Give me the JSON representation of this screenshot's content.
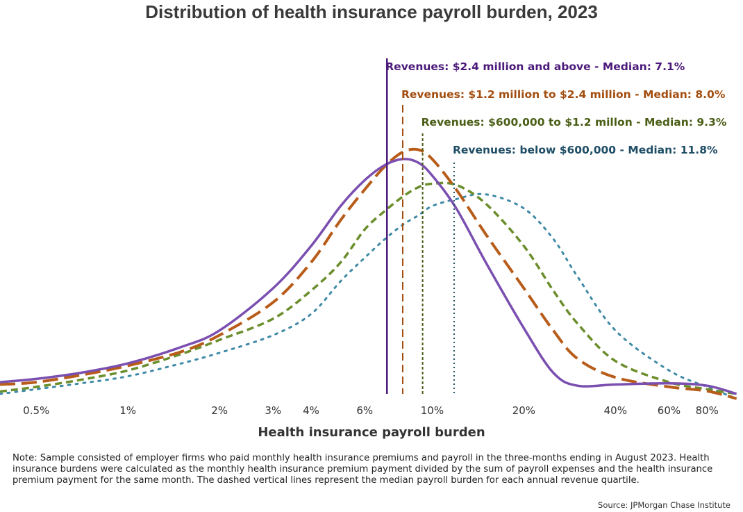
{
  "title": "Distribution of health insurance payroll burden, 2023",
  "note": "Note: Sample consisted of employer firms who paid monthly health insurance premiums and payroll in the three-months ending in August 2023. Health insurance burdens were calculated as the monthly health insurance premium payment divided by the sum of payroll expenses and the health insurance premium payment for the same month. The dashed vertical lines represent the median payroll burden for each annual revenue quartile.",
  "source": "Source: JPMorgan Chase Institute",
  "chart_data": {
    "type": "line",
    "title": "Distribution of health insurance payroll burden, 2023",
    "xlabel": "Health insurance payroll burden",
    "ylabel": "",
    "x_scale": "log",
    "x_range_pct": [
      0.38,
      105
    ],
    "x_ticks": [
      {
        "value": 0.5,
        "label": "0.5%"
      },
      {
        "value": 1,
        "label": "1%"
      },
      {
        "value": 2,
        "label": "2%"
      },
      {
        "value": 3,
        "label": "3%"
      },
      {
        "value": 4,
        "label": "4%"
      },
      {
        "value": 6,
        "label": "6%"
      },
      {
        "value": 10,
        "label": "10%"
      },
      {
        "value": 20,
        "label": "20%"
      },
      {
        "value": 40,
        "label": "40%"
      },
      {
        "value": 60,
        "label": "60%"
      },
      {
        "value": 80,
        "label": "80%"
      }
    ],
    "y_range": [
      0,
      1
    ],
    "grid": false,
    "series": [
      {
        "name": "Revenues: $2.4 million and above",
        "color": "#7a4fb0",
        "dash": "solid",
        "median": 7.1,
        "median_label": "Revenues: $2.4 million and above - Median: 7.1%",
        "median_color": "#4b1a7a",
        "points": [
          [
            0.38,
            0.05
          ],
          [
            0.5,
            0.064
          ],
          [
            0.7,
            0.09
          ],
          [
            1,
            0.13
          ],
          [
            1.5,
            0.2
          ],
          [
            2,
            0.27
          ],
          [
            3,
            0.45
          ],
          [
            4,
            0.63
          ],
          [
            5,
            0.8
          ],
          [
            6,
            0.91
          ],
          [
            7,
            0.975
          ],
          [
            8,
            1.0
          ],
          [
            9,
            0.985
          ],
          [
            10,
            0.93
          ],
          [
            12,
            0.79
          ],
          [
            15,
            0.56
          ],
          [
            20,
            0.28
          ],
          [
            25,
            0.09
          ],
          [
            30,
            0.035
          ],
          [
            40,
            0.04
          ],
          [
            60,
            0.045
          ],
          [
            80,
            0.035
          ],
          [
            100,
            0.0
          ]
        ]
      },
      {
        "name": "Revenues: $1.2 million to $2.4 million",
        "color": "#b85c1a",
        "dash": "long-dash",
        "median": 8.0,
        "median_label": "Revenues: $1.2 million to $2.4 million - Median: 8.0%",
        "median_color": "#a34e10",
        "points": [
          [
            0.38,
            0.04
          ],
          [
            0.5,
            0.05
          ],
          [
            0.7,
            0.08
          ],
          [
            1,
            0.12
          ],
          [
            1.5,
            0.18
          ],
          [
            2,
            0.25
          ],
          [
            3,
            0.39
          ],
          [
            4,
            0.56
          ],
          [
            5,
            0.74
          ],
          [
            6,
            0.87
          ],
          [
            7,
            0.97
          ],
          [
            8,
            1.03
          ],
          [
            9,
            1.04
          ],
          [
            10,
            1.0
          ],
          [
            12,
            0.87
          ],
          [
            15,
            0.68
          ],
          [
            20,
            0.45
          ],
          [
            25,
            0.27
          ],
          [
            30,
            0.15
          ],
          [
            40,
            0.07
          ],
          [
            60,
            0.03
          ],
          [
            80,
            0.012
          ],
          [
            100,
            -0.02
          ]
        ]
      },
      {
        "name": "Revenues: $600,000 to $1.2 million",
        "color": "#6b8e2c",
        "dash": "short-dash",
        "median": 9.3,
        "median_label": "Revenues: $600,000 to $1.2 millon - Median: 9.3%",
        "median_color": "#4a5e16",
        "points": [
          [
            0.38,
            0.01
          ],
          [
            0.5,
            0.03
          ],
          [
            0.7,
            0.06
          ],
          [
            1,
            0.1
          ],
          [
            1.5,
            0.17
          ],
          [
            2,
            0.23
          ],
          [
            3,
            0.32
          ],
          [
            4,
            0.44
          ],
          [
            5,
            0.56
          ],
          [
            6,
            0.7
          ],
          [
            7,
            0.78
          ],
          [
            8,
            0.84
          ],
          [
            9,
            0.88
          ],
          [
            10,
            0.895
          ],
          [
            12,
            0.89
          ],
          [
            15,
            0.81
          ],
          [
            20,
            0.63
          ],
          [
            25,
            0.44
          ],
          [
            30,
            0.3
          ],
          [
            40,
            0.14
          ],
          [
            60,
            0.05
          ],
          [
            80,
            0.02
          ],
          [
            100,
            0.0
          ]
        ]
      },
      {
        "name": "Revenues: below $600,000",
        "color": "#3f8aa6",
        "dash": "dotted",
        "median": 11.8,
        "median_label": "Revenues: below $600,000 - Median: 11.8%",
        "median_color": "#1f4e66",
        "points": [
          [
            0.38,
            0.0
          ],
          [
            0.5,
            0.02
          ],
          [
            0.7,
            0.045
          ],
          [
            1,
            0.075
          ],
          [
            1.5,
            0.13
          ],
          [
            2,
            0.175
          ],
          [
            3,
            0.25
          ],
          [
            4,
            0.34
          ],
          [
            5,
            0.48
          ],
          [
            6,
            0.58
          ],
          [
            7,
            0.66
          ],
          [
            8,
            0.72
          ],
          [
            9,
            0.76
          ],
          [
            10,
            0.8
          ],
          [
            12,
            0.83
          ],
          [
            15,
            0.85
          ],
          [
            20,
            0.79
          ],
          [
            25,
            0.66
          ],
          [
            30,
            0.5
          ],
          [
            40,
            0.27
          ],
          [
            60,
            0.1
          ],
          [
            80,
            0.03
          ],
          [
            100,
            -0.02
          ]
        ]
      }
    ]
  }
}
